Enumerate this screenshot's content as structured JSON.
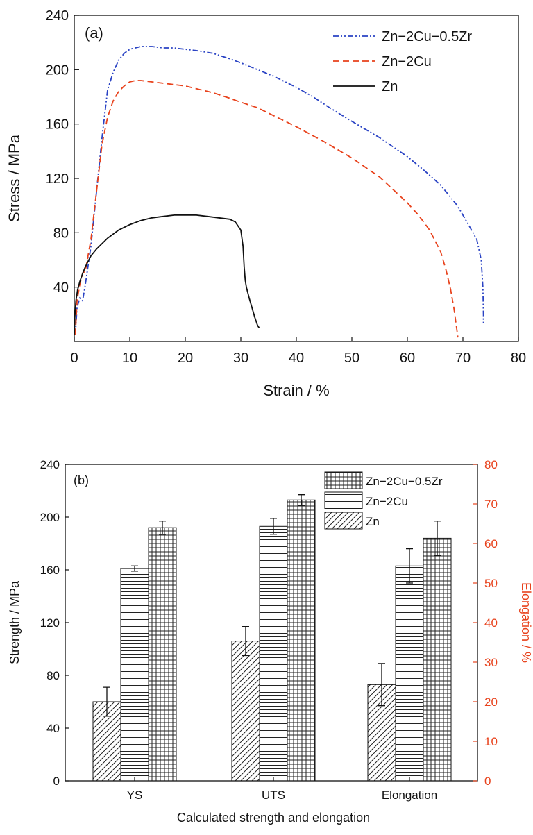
{
  "chart_data": [
    {
      "type": "line",
      "panel_label": "(a)",
      "xlabel": "Strain / %",
      "ylabel": "Stress / MPa",
      "xlim": [
        0,
        80
      ],
      "ylim": [
        0,
        240
      ],
      "xticks": [
        "0",
        "10",
        "20",
        "30",
        "40",
        "50",
        "60",
        "70",
        "80"
      ],
      "yticks": [
        "40",
        "80",
        "120",
        "160",
        "200",
        "240"
      ],
      "legend_position": "top-right",
      "series": [
        {
          "name": "Zn−2Cu−0.5Zr",
          "style": "dashdotdot",
          "color": "#2a43c4",
          "x": [
            0.2,
            0.5,
            1,
            1.5,
            2,
            3,
            4,
            5,
            6,
            7,
            8,
            9,
            10,
            11,
            12,
            14,
            16,
            18,
            20,
            22,
            25,
            28,
            30,
            33,
            36,
            40,
            43,
            46,
            50,
            55,
            60,
            63,
            66,
            69,
            71,
            72.5,
            73.3,
            73.6,
            73.7,
            73.7
          ],
          "y": [
            5,
            25,
            32,
            30,
            42,
            70,
            110,
            150,
            185,
            198,
            207,
            212,
            215,
            216,
            217,
            217,
            216,
            216,
            215,
            214,
            212,
            208,
            205,
            200,
            195,
            187,
            180,
            172,
            162,
            150,
            136,
            126,
            115,
            100,
            86,
            75,
            60,
            40,
            20,
            12
          ]
        },
        {
          "name": "Zn−2Cu",
          "style": "dashed",
          "color": "#e8421c",
          "x": [
            0.2,
            0.5,
            1,
            1.5,
            2,
            3,
            4,
            5,
            6,
            7,
            8,
            9,
            10,
            11,
            12,
            14,
            16,
            18,
            20,
            22,
            25,
            28,
            30,
            33,
            36,
            40,
            45,
            50,
            55,
            60,
            62,
            64,
            66,
            67,
            67.8,
            68.4,
            68.8,
            69,
            69.1
          ],
          "y": [
            5,
            30,
            42,
            50,
            52,
            75,
            110,
            145,
            165,
            177,
            184,
            188,
            191,
            192,
            192,
            191,
            190,
            189,
            188,
            186,
            183,
            179,
            176,
            172,
            166,
            158,
            147,
            135,
            121,
            102,
            93,
            82,
            66,
            52,
            38,
            24,
            12,
            6,
            3
          ]
        },
        {
          "name": "Zn",
          "style": "solid",
          "color": "#111111",
          "x": [
            0,
            0.1,
            0.3,
            0.6,
            1,
            1.5,
            2,
            3,
            4,
            5,
            6,
            8,
            10,
            12,
            14,
            16,
            18,
            20,
            22,
            24,
            26,
            28,
            29,
            30,
            30.4,
            30.6,
            30.8,
            31,
            31.5,
            32,
            32.5,
            33,
            33.3
          ],
          "y": [
            5,
            18,
            30,
            38,
            44,
            50,
            55,
            63,
            68,
            72,
            76,
            82,
            86,
            89,
            91,
            92,
            93,
            93,
            93,
            92,
            91,
            90,
            88,
            82,
            70,
            55,
            45,
            40,
            32,
            25,
            18,
            12,
            10
          ]
        }
      ]
    },
    {
      "type": "bar",
      "panel_label": "(b)",
      "xlabel": "Calculated strength and elongation",
      "ylabel": "Strength / MPa",
      "y2label": "Elongation / %",
      "y2color": "#e8421c",
      "ylim": [
        0,
        240
      ],
      "y2lim": [
        0,
        80
      ],
      "yticks": [
        "0",
        "40",
        "80",
        "120",
        "160",
        "200",
        "240"
      ],
      "y2ticks": [
        "0",
        "10",
        "20",
        "30",
        "40",
        "50",
        "60",
        "70",
        "80"
      ],
      "categories": [
        "YS",
        "UTS",
        "Elongation"
      ],
      "legend_position": "top-right",
      "series": [
        {
          "name": "Zn",
          "pattern": "diagonal",
          "values": [
            60,
            106,
            73
          ],
          "errors": [
            11,
            11,
            16
          ]
        },
        {
          "name": "Zn−2Cu",
          "pattern": "horizontal",
          "values": [
            161,
            193,
            163
          ],
          "errors": [
            2,
            6,
            13
          ]
        },
        {
          "name": "Zn−2Cu−0.5Zr",
          "pattern": "grid",
          "values": [
            192,
            213,
            184
          ],
          "errors": [
            5,
            4,
            13
          ]
        }
      ]
    }
  ]
}
